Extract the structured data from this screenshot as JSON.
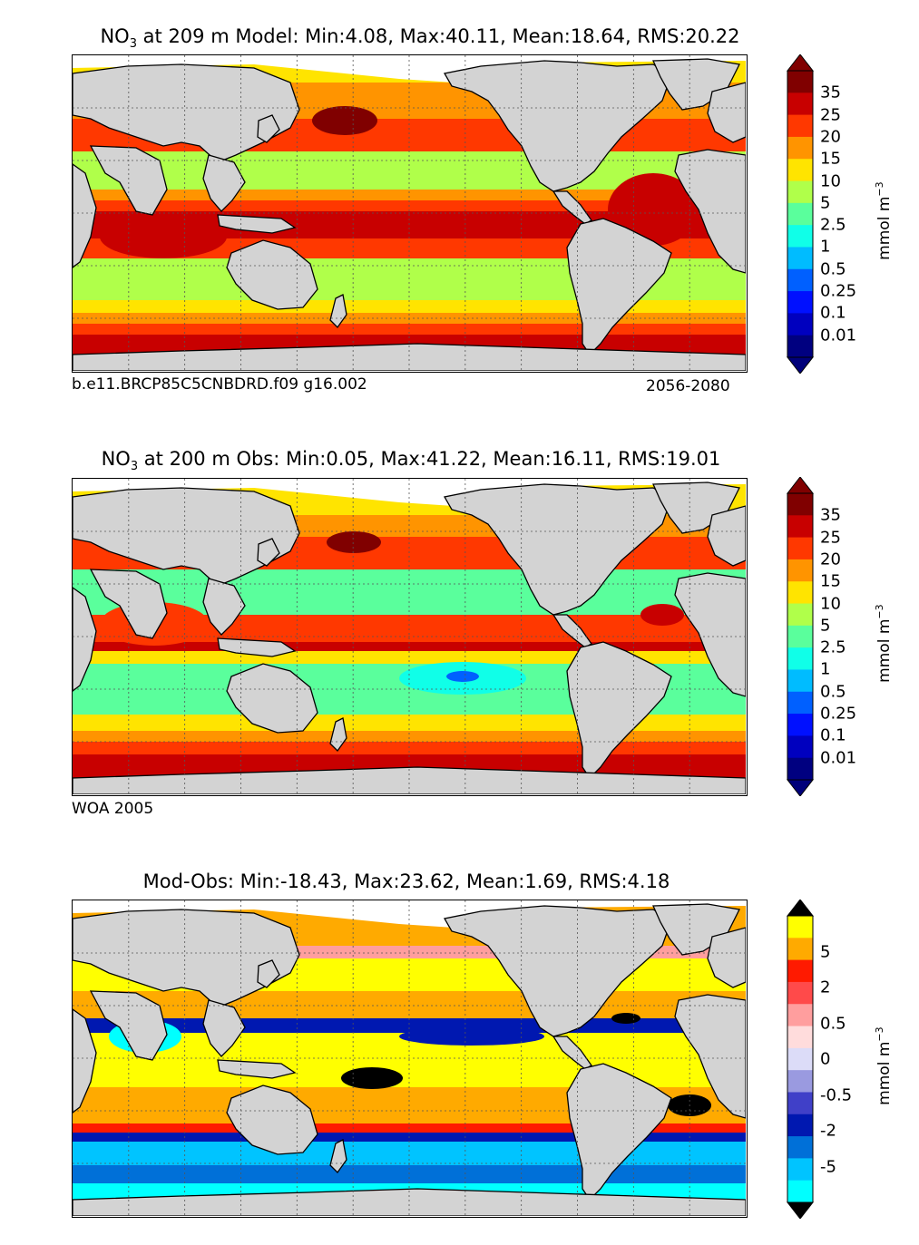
{
  "panels": [
    {
      "id": "model",
      "title_species": "NO",
      "title_subscript": "3",
      "title_rest": " at 209 m Model: Min:4.08, Max:40.11, Mean:18.64, RMS:20.22",
      "caption_left": "b.e11.BRCP85C5CNBDRD.f09 g16.002",
      "caption_right": "2056-2080"
    },
    {
      "id": "obs",
      "title_species": "NO",
      "title_subscript": "3",
      "title_rest": " at 200 m Obs: Min:0.05, Max:41.22, Mean:16.11, RMS:19.01",
      "caption_left": "WOA 2005",
      "caption_right": ""
    },
    {
      "id": "diff",
      "title_species": "",
      "title_subscript": "",
      "title_rest": "Mod-Obs: Min:-18.43, Max:23.62, Mean:1.69, RMS:4.18",
      "caption_left": "",
      "caption_right": ""
    }
  ],
  "colorbars": {
    "abs": {
      "unit_text": "mmol m",
      "unit_exp": "−3",
      "ticks": [
        "35",
        "25",
        "20",
        "15",
        "10",
        "5",
        "2.5",
        "1",
        "0.5",
        "0.25",
        "0.1",
        "0.01"
      ],
      "colors": [
        "#800000",
        "#c80000",
        "#ff3800",
        "#ff9400",
        "#ffe400",
        "#b0ff4a",
        "#5aff9c",
        "#10ffe8",
        "#00bcff",
        "#0060ff",
        "#0010ff",
        "#0000bf",
        "#000080"
      ],
      "over_color": "#800000",
      "under_color": "#00007a"
    },
    "diff": {
      "unit_text": "mmol m",
      "unit_exp": "−3",
      "ticks": [
        "5",
        "2",
        "0.5",
        "0",
        "-0.5",
        "-2",
        "-5"
      ],
      "colors": [
        "#ffff00",
        "#ffaa00",
        "#ff1a00",
        "#ff4a4a",
        "#ff9e9e",
        "#ffdcdc",
        "#dcdcf8",
        "#9a9ae0",
        "#4040c8",
        "#0018b0",
        "#0070d8",
        "#00c4ff",
        "#00ffff"
      ],
      "over_color": "#000000",
      "under_color": "#000000"
    }
  },
  "colors": {
    "land": "#d3d3d3",
    "no_data": "#ffffff",
    "coast": "#000000",
    "grid": "#555555"
  }
}
